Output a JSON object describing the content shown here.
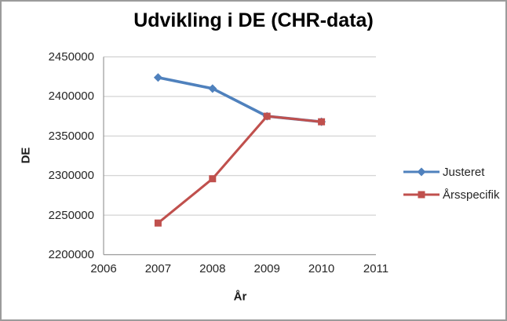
{
  "chart_data": {
    "type": "line",
    "title": "Udvikling i DE (CHR-data)",
    "xlabel": "År",
    "ylabel": "DE",
    "xlim": [
      2006,
      2011
    ],
    "ylim": [
      2200000,
      2450000
    ],
    "xticks": [
      2006,
      2007,
      2008,
      2009,
      2010,
      2011
    ],
    "yticks": [
      2200000,
      2250000,
      2300000,
      2350000,
      2400000,
      2450000
    ],
    "grid": "horizontal-only",
    "legend_position": "right",
    "series": [
      {
        "name": "Justeret",
        "color": "#4F81BD",
        "marker": "diamond",
        "x": [
          2007,
          2008,
          2009,
          2010
        ],
        "values": [
          2424000,
          2410000,
          2375000,
          2368000
        ]
      },
      {
        "name": "Årsspecifik",
        "color": "#C0504D",
        "marker": "square",
        "x": [
          2007,
          2008,
          2009,
          2010
        ],
        "values": [
          2240000,
          2296000,
          2375000,
          2368000
        ]
      }
    ],
    "colors": {
      "gridline": "#C9C9C9",
      "axis": "#9A9A9A",
      "tick_text": "#262626",
      "title_text": "#000000",
      "frame_border": "#9B9B9B"
    }
  }
}
